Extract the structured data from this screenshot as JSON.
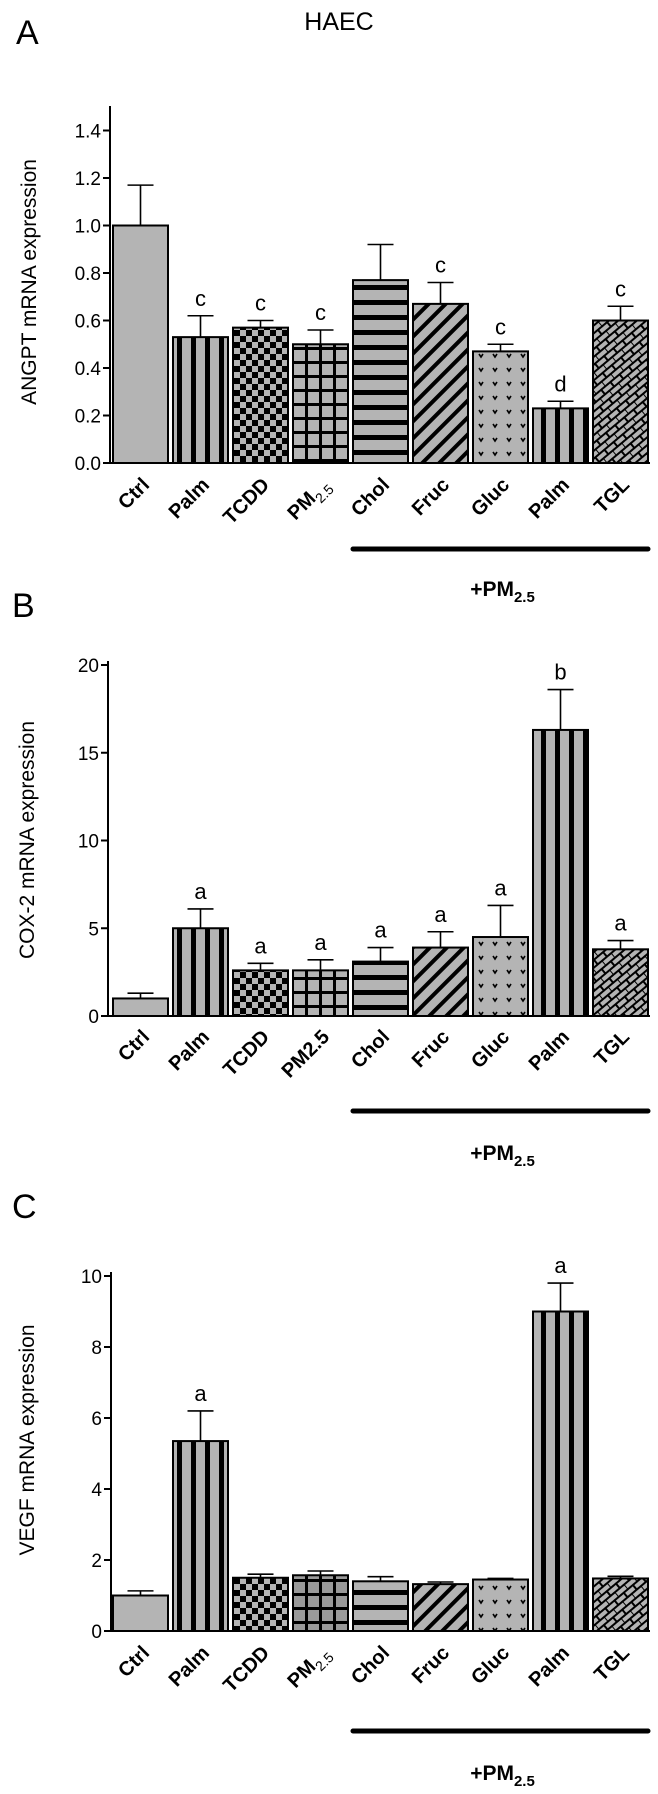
{
  "figure": {
    "title": "HAEC",
    "group_label": "+PM",
    "group_label_sub": "2.5"
  },
  "chart_data": [
    {
      "panel": "A",
      "type": "bar",
      "title": "HAEC",
      "ylabel": "ANGPT mRNA expression",
      "xlabel": "",
      "ylim": [
        0,
        1.5
      ],
      "yticks": [
        0.0,
        0.2,
        0.4,
        0.6,
        0.8,
        1.0,
        1.2,
        1.4
      ],
      "ytick_labels": [
        "0.0",
        "0.2",
        "0.4",
        "0.6",
        "0.8",
        "1.0",
        "1.2",
        "1.4"
      ],
      "categories": [
        "Ctrl",
        "Palm",
        "TCDD",
        "PM2.5",
        "Chol",
        "Fruc",
        "Gluc",
        "Palm",
        "TGL"
      ],
      "category_display": [
        [
          "Ctrl",
          ""
        ],
        [
          "Palm",
          ""
        ],
        [
          "TCDD",
          ""
        ],
        [
          "PM",
          "2.5"
        ],
        [
          "Chol",
          ""
        ],
        [
          "Fruc",
          ""
        ],
        [
          "Gluc",
          ""
        ],
        [
          "Palm",
          ""
        ],
        [
          "TGL",
          ""
        ]
      ],
      "values": [
        1.0,
        0.53,
        0.57,
        0.5,
        0.77,
        0.67,
        0.47,
        0.23,
        0.6
      ],
      "errors": [
        0.17,
        0.09,
        0.03,
        0.06,
        0.15,
        0.09,
        0.03,
        0.03,
        0.06
      ],
      "significance": [
        "",
        "c",
        "c",
        "c",
        "",
        "c",
        "c",
        "d",
        "c"
      ],
      "patterns": [
        "solid",
        "vstripe",
        "checker",
        "grid",
        "hstripe",
        "diag",
        "dots",
        "vstripe",
        "brick"
      ],
      "group_bracket": {
        "label": "+PM2.5",
        "from": "Chol",
        "to": "TGL"
      },
      "grid": false
    },
    {
      "panel": "B",
      "type": "bar",
      "ylabel": "COX-2 mRNA expression",
      "xlabel": "",
      "ylim": [
        0,
        20
      ],
      "yticks": [
        0,
        5,
        10,
        15,
        20
      ],
      "ytick_labels": [
        "0",
        "5",
        "10",
        "15",
        "20"
      ],
      "categories": [
        "Ctrl",
        "Palm",
        "TCDD",
        "PM2.5",
        "Chol",
        "Fruc",
        "Gluc",
        "Palm",
        "TGL"
      ],
      "category_display": [
        [
          "Ctrl",
          ""
        ],
        [
          "Palm",
          ""
        ],
        [
          "TCDD",
          ""
        ],
        [
          "PM2.5",
          ""
        ],
        [
          "Chol",
          ""
        ],
        [
          "Fruc",
          ""
        ],
        [
          "Gluc",
          ""
        ],
        [
          "Palm",
          ""
        ],
        [
          "TGL",
          ""
        ]
      ],
      "values": [
        1.0,
        5.0,
        2.6,
        2.6,
        3.1,
        3.9,
        4.5,
        16.3,
        3.8
      ],
      "errors": [
        0.3,
        1.1,
        0.4,
        0.6,
        0.8,
        0.9,
        1.8,
        2.3,
        0.5
      ],
      "significance": [
        "",
        "a",
        "a",
        "a",
        "a",
        "a",
        "a",
        "b",
        "a"
      ],
      "patterns": [
        "solid",
        "vstripe",
        "checker",
        "grid",
        "hstripe",
        "diag",
        "dots",
        "vstripe",
        "brick"
      ],
      "group_bracket": {
        "label": "+PM2.5",
        "from": "Chol",
        "to": "TGL"
      },
      "grid": false
    },
    {
      "panel": "C",
      "type": "bar",
      "ylabel": "VEGF mRNA expression",
      "xlabel": "",
      "ylim": [
        0,
        10
      ],
      "yticks": [
        0,
        2,
        4,
        6,
        8,
        10
      ],
      "ytick_labels": [
        "0",
        "2",
        "4",
        "6",
        "8",
        "10"
      ],
      "categories": [
        "Ctrl",
        "Palm",
        "TCDD",
        "PM2.5",
        "Chol",
        "Fruc",
        "Gluc",
        "Palm",
        "TGL"
      ],
      "category_display": [
        [
          "Ctrl",
          ""
        ],
        [
          "Palm",
          ""
        ],
        [
          "TCDD",
          ""
        ],
        [
          "PM",
          "2.5"
        ],
        [
          "Chol",
          ""
        ],
        [
          "Fruc",
          ""
        ],
        [
          "Gluc",
          ""
        ],
        [
          "Palm",
          ""
        ],
        [
          "TGL",
          ""
        ]
      ],
      "values": [
        1.0,
        5.35,
        1.5,
        1.57,
        1.4,
        1.32,
        1.45,
        9.0,
        1.48
      ],
      "errors": [
        0.13,
        0.85,
        0.1,
        0.12,
        0.13,
        0.06,
        0.03,
        0.8,
        0.06
      ],
      "significance": [
        "",
        "a",
        "",
        "",
        "",
        "",
        "",
        "a",
        ""
      ],
      "patterns": [
        "solid",
        "vstripe",
        "checker",
        "gridDark",
        "hstripe",
        "diag",
        "dots",
        "vstripe",
        "brick"
      ],
      "group_bracket": {
        "label": "+PM2.5",
        "from": "Chol",
        "to": "TGL"
      },
      "grid": false
    }
  ],
  "panels": [
    {
      "letter": "A"
    },
    {
      "letter": "B"
    },
    {
      "letter": "C"
    }
  ],
  "colors": {
    "bar_fill": "#b4b4b4",
    "grid_dark_fill": "#9a9a9a",
    "ink": "#000000",
    "background": "#ffffff"
  }
}
